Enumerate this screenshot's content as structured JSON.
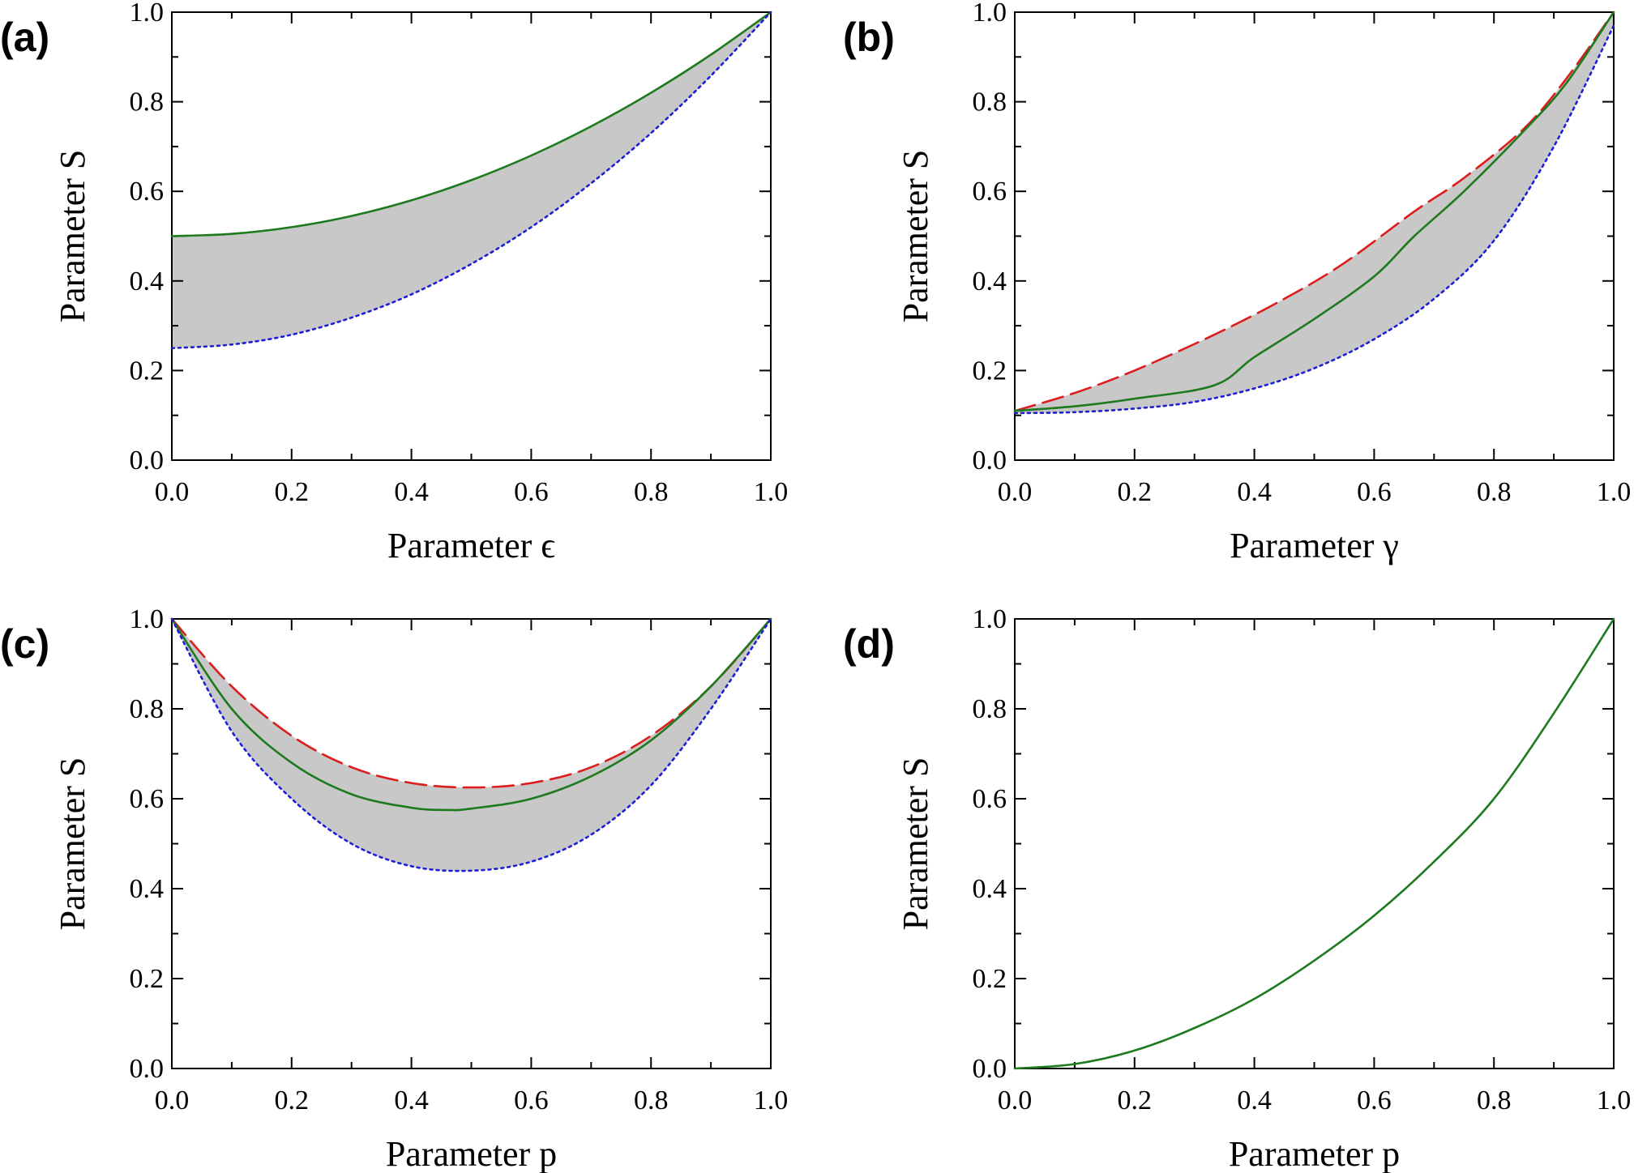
{
  "figure": {
    "colors": {
      "band": "#c8c8c8",
      "solid": "#1e7a1e",
      "dashed": "#dd1c1c",
      "dotted": "#1e1ed8"
    }
  },
  "chart_data": [
    {
      "panel": "(a)",
      "type": "line",
      "xlabel": "Parameter ϵ",
      "ylabel": "Parameter S",
      "xlim": [
        0,
        1
      ],
      "ylim": [
        0,
        1
      ],
      "xticks": [
        "0.0",
        "0.2",
        "0.4",
        "0.6",
        "0.8",
        "1.0"
      ],
      "yticks": [
        "0.0",
        "0.2",
        "0.4",
        "0.6",
        "0.8",
        "1.0"
      ],
      "shaded_between": [
        "solid",
        "dotted"
      ],
      "series": [
        {
          "style": "solid",
          "x": [
            0,
            0.1,
            0.2,
            0.3,
            0.4,
            0.5,
            0.6,
            0.7,
            0.8,
            0.9,
            1.0
          ],
          "y": [
            0.5,
            0.505,
            0.52,
            0.545,
            0.58,
            0.625,
            0.68,
            0.745,
            0.82,
            0.905,
            1.0
          ]
        },
        {
          "style": "dotted",
          "x": [
            0,
            0.1,
            0.2,
            0.3,
            0.4,
            0.5,
            0.6,
            0.7,
            0.8,
            0.9,
            1.0
          ],
          "y": [
            0.25,
            0.258,
            0.28,
            0.318,
            0.37,
            0.438,
            0.52,
            0.618,
            0.73,
            0.858,
            1.0
          ]
        }
      ]
    },
    {
      "panel": "(b)",
      "type": "line",
      "xlabel": "Parameter γ",
      "ylabel": "Parameter S",
      "xlim": [
        0,
        1
      ],
      "ylim": [
        0,
        1
      ],
      "xticks": [
        "0.0",
        "0.2",
        "0.4",
        "0.6",
        "0.8",
        "1.0"
      ],
      "yticks": [
        "0.0",
        "0.2",
        "0.4",
        "0.6",
        "0.8",
        "1.0"
      ],
      "shaded_between": [
        "dashed",
        "dotted"
      ],
      "series": [
        {
          "style": "dashed",
          "x": [
            0,
            0.1,
            0.2,
            0.333,
            0.45,
            0.55,
            0.667,
            0.75,
            0.85,
            0.92,
            1.0
          ],
          "y": [
            0.11,
            0.15,
            0.2,
            0.28,
            0.36,
            0.44,
            0.555,
            0.63,
            0.74,
            0.85,
            1.0
          ]
        },
        {
          "style": "solid",
          "x": [
            0,
            0.1,
            0.2,
            0.333,
            0.4,
            0.5,
            0.6,
            0.667,
            0.75,
            0.85,
            0.92,
            1.0
          ],
          "y": [
            0.11,
            0.12,
            0.137,
            0.167,
            0.23,
            0.315,
            0.41,
            0.5,
            0.6,
            0.735,
            0.84,
            1.0
          ]
        },
        {
          "style": "dotted",
          "x": [
            0,
            0.1,
            0.2,
            0.3,
            0.4,
            0.5,
            0.6,
            0.7,
            0.8,
            0.9,
            1.0
          ],
          "y": [
            0.105,
            0.107,
            0.115,
            0.13,
            0.16,
            0.205,
            0.27,
            0.36,
            0.49,
            0.7,
            0.97
          ]
        }
      ]
    },
    {
      "panel": "(c)",
      "type": "line",
      "xlabel": "Parameter p",
      "ylabel": "Parameter S",
      "xlim": [
        0,
        1
      ],
      "ylim": [
        0,
        1
      ],
      "xticks": [
        "0.0",
        "0.2",
        "0.4",
        "0.6",
        "0.8",
        "1.0"
      ],
      "yticks": [
        "0.0",
        "0.2",
        "0.4",
        "0.6",
        "0.8",
        "1.0"
      ],
      "shaded_between": [
        "dashed",
        "dotted"
      ],
      "series": [
        {
          "style": "dashed",
          "x": [
            0,
            0.1,
            0.2,
            0.3,
            0.4,
            0.5,
            0.6,
            0.7,
            0.8,
            0.9,
            1.0
          ],
          "y": [
            1.0,
            0.85,
            0.74,
            0.67,
            0.635,
            0.625,
            0.635,
            0.67,
            0.74,
            0.85,
            1.0
          ]
        },
        {
          "style": "solid",
          "x": [
            0,
            0.1,
            0.2,
            0.3,
            0.4,
            0.46,
            0.5,
            0.6,
            0.7,
            0.8,
            0.9,
            1.0
          ],
          "y": [
            1.0,
            0.8,
            0.68,
            0.61,
            0.58,
            0.575,
            0.578,
            0.6,
            0.65,
            0.73,
            0.85,
            1.0
          ]
        },
        {
          "style": "dotted",
          "x": [
            0,
            0.1,
            0.2,
            0.3,
            0.4,
            0.5,
            0.6,
            0.7,
            0.8,
            0.9,
            1.0
          ],
          "y": [
            1.0,
            0.75,
            0.6,
            0.5,
            0.45,
            0.44,
            0.46,
            0.52,
            0.63,
            0.8,
            1.0
          ]
        }
      ]
    },
    {
      "panel": "(d)",
      "type": "line",
      "xlabel": "Parameter p",
      "ylabel": "Parameter S",
      "xlim": [
        0,
        1
      ],
      "ylim": [
        0,
        1
      ],
      "xticks": [
        "0.0",
        "0.2",
        "0.4",
        "0.6",
        "0.8",
        "1.0"
      ],
      "yticks": [
        "0.0",
        "0.2",
        "0.4",
        "0.6",
        "0.8",
        "1.0"
      ],
      "shaded_between": [],
      "series": [
        {
          "style": "solid",
          "x": [
            0,
            0.1,
            0.2,
            0.3,
            0.4,
            0.5,
            0.6,
            0.7,
            0.8,
            0.9,
            1.0
          ],
          "y": [
            0.0,
            0.01,
            0.04,
            0.09,
            0.155,
            0.24,
            0.34,
            0.46,
            0.6,
            0.79,
            1.0
          ]
        }
      ]
    }
  ]
}
